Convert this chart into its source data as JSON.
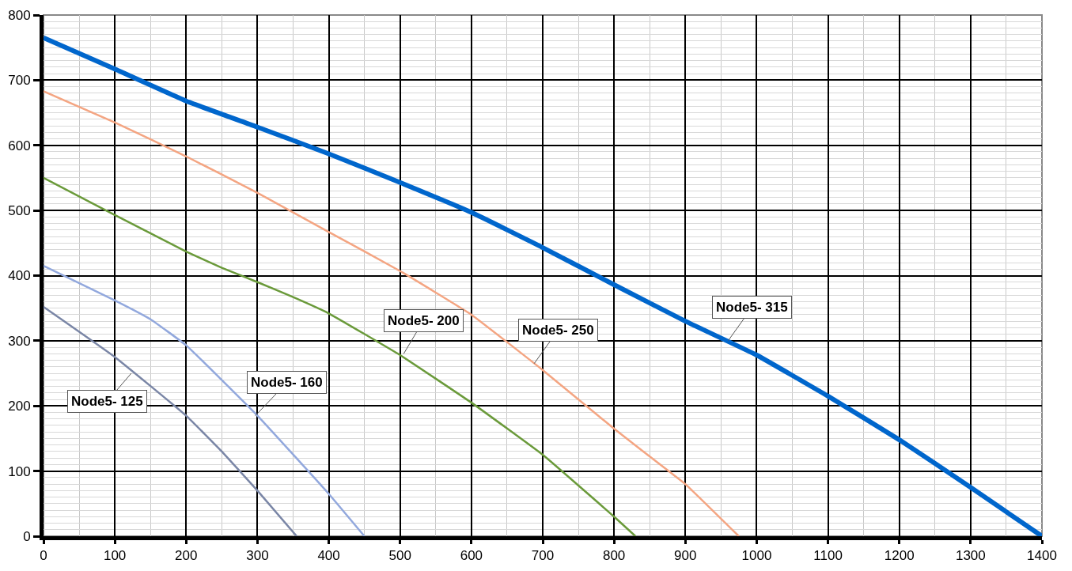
{
  "chart_data": {
    "type": "line",
    "xlim": [
      0,
      1400
    ],
    "ylim": [
      0,
      800
    ],
    "xticks": [
      0,
      100,
      200,
      300,
      400,
      500,
      600,
      700,
      800,
      900,
      1000,
      1100,
      1200,
      1300,
      1400
    ],
    "yticks": [
      0,
      100,
      200,
      300,
      400,
      500,
      600,
      700,
      800
    ],
    "grid": true,
    "marker": "none",
    "line_style": "solid",
    "series": [
      {
        "color": "#0066cc",
        "x": [
          0,
          100,
          200,
          300,
          400,
          500,
          600,
          700,
          800,
          900,
          1000,
          1100,
          1200,
          1300,
          1400
        ],
        "values": [
          765,
          717,
          668,
          628,
          587,
          543,
          497,
          443,
          386,
          330,
          278,
          215,
          148,
          75,
          0
        ]
      },
      {
        "color": "#f4a582",
        "x": [
          0,
          100,
          200,
          300,
          400,
          500,
          600,
          700,
          800,
          880,
          900,
          975
        ],
        "values": [
          683,
          635,
          583,
          527,
          467,
          407,
          340,
          255,
          165,
          97,
          80,
          0
        ]
      },
      {
        "color": "#6a9a3a",
        "x": [
          0,
          100,
          200,
          250,
          300,
          350,
          400,
          500,
          600,
          700,
          800,
          830
        ],
        "values": [
          550,
          493,
          437,
          412,
          390,
          367,
          342,
          278,
          205,
          125,
          30,
          0
        ]
      },
      {
        "color": "#92a8dd",
        "x": [
          0,
          100,
          150,
          200,
          300,
          400,
          450
        ],
        "values": [
          415,
          362,
          333,
          293,
          185,
          65,
          0
        ]
      },
      {
        "color": "#7a86a6",
        "x": [
          0,
          100,
          200,
          250,
          300,
          355
        ],
        "values": [
          352,
          275,
          185,
          130,
          70,
          0
        ]
      }
    ],
    "annotations": [
      {
        "text": "Node5- 315",
        "x": 960,
        "y": 300
      },
      {
        "text": "Node5- 250",
        "x": 688,
        "y": 265
      },
      {
        "text": "Node5- 200",
        "x": 505,
        "y": 280
      },
      {
        "text": "Node5- 160",
        "x": 297,
        "y": 185
      },
      {
        "text": "Node5- 125",
        "x": 123,
        "y": 250
      }
    ]
  }
}
